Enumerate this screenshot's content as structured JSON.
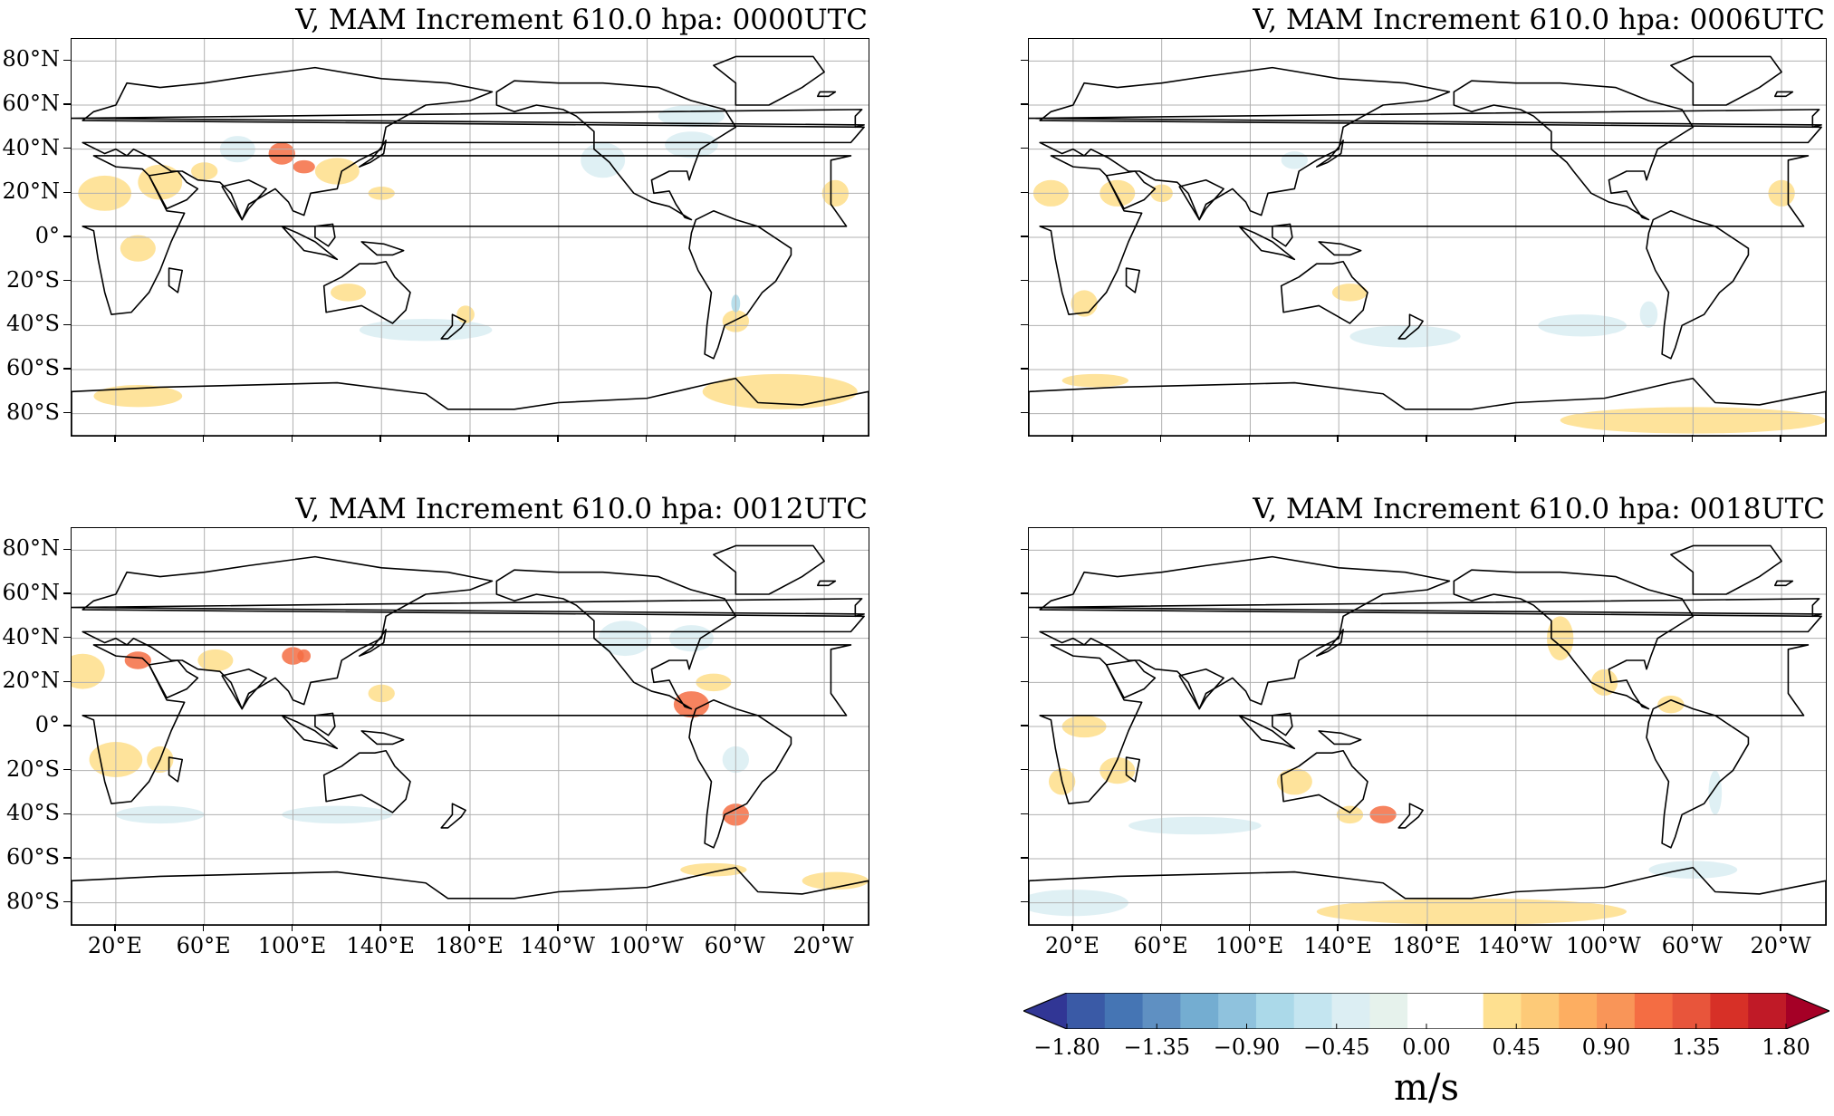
{
  "panels": [
    {
      "id": "p0000",
      "title": "V, MAM Increment 610.0 hpa: 0000UTC",
      "show_xlabels": false,
      "show_ylabels": true
    },
    {
      "id": "p0006",
      "title": "V, MAM Increment 610.0 hpa: 0006UTC",
      "show_xlabels": false,
      "show_ylabels": false
    },
    {
      "id": "p0012",
      "title": "V, MAM Increment 610.0 hpa: 0012UTC",
      "show_xlabels": true,
      "show_ylabels": true
    },
    {
      "id": "p0018",
      "title": "V, MAM Increment 610.0 hpa: 0018UTC",
      "show_xlabels": true,
      "show_ylabels": false
    }
  ],
  "lat_ticks": [
    "80°N",
    "60°N",
    "40°N",
    "20°N",
    "0°",
    "20°S",
    "40°S",
    "60°S",
    "80°S"
  ],
  "lat_values": [
    80,
    60,
    40,
    20,
    0,
    -20,
    -40,
    -60,
    -80
  ],
  "lon_ticks": [
    "20°E",
    "60°E",
    "100°E",
    "140°E",
    "180°E",
    "140°W",
    "100°W",
    "60°W",
    "20°W"
  ],
  "lon_values": [
    20,
    60,
    100,
    140,
    180,
    220,
    260,
    300,
    340
  ],
  "map_extent": {
    "lon_min": 0,
    "lon_max": 360,
    "lat_min": -90,
    "lat_max": 90,
    "central_longitude": 180
  },
  "colorbar": {
    "labels": [
      "−1.80",
      "−1.35",
      "−0.90",
      "−0.45",
      "0.00",
      "0.45",
      "0.90",
      "1.35",
      "1.80"
    ],
    "min": -1.8,
    "max": 1.8,
    "step": 0.15,
    "unit": "m/s",
    "colors": [
      "#313695",
      "#3a5aa6",
      "#4575b4",
      "#5f90c2",
      "#74add1",
      "#8fc2dd",
      "#abd9e9",
      "#c4e5f0",
      "#dceef3",
      "#e6f2ec",
      "#ffffff",
      "#ffffff",
      "#fee090",
      "#fdca78",
      "#fdae61",
      "#f99558",
      "#f46d43",
      "#e8553b",
      "#d73027",
      "#c01a27",
      "#a50026"
    ],
    "extend": "both"
  },
  "colors": {
    "positive": "#fee090",
    "positive_strong": "#f46d43",
    "negative": "#dceef3",
    "negative_strong": "#abd9e9",
    "grid": "#b0b0b0",
    "coast": "#000000"
  }
}
